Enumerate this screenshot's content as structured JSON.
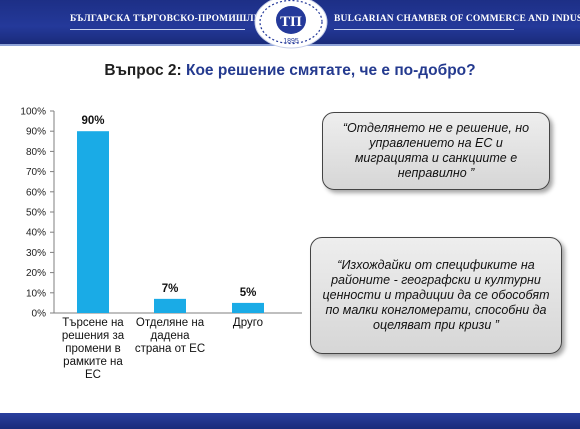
{
  "header": {
    "left_text": "БЪЛГАРСКА ТЪРГОВСКО-ПРОМИШЛЕНА ПАЛАТА",
    "right_text": "BULGARIAN CHAMBER OF COMMERCE AND INDUSTRY",
    "logo_year": "1895",
    "logo_glyph": "ТП"
  },
  "question": {
    "prefix": "Въпрос 2: ",
    "text": "Кое решение смятате, че е по-добро?"
  },
  "chart_data": {
    "type": "bar",
    "categories": [
      "Търсене на решения за промени в рамките на ЕС",
      "Отделяне на дадена страна от ЕС",
      "Друго"
    ],
    "category_lines": [
      [
        "Търсене на",
        "решения за",
        "промени в",
        "рамките на",
        "ЕС"
      ],
      [
        "Отделяне на",
        "дадена",
        "страна от ЕС"
      ],
      [
        "Друго"
      ]
    ],
    "values": [
      90,
      7,
      5
    ],
    "data_labels": [
      "90%",
      "7%",
      "5%"
    ],
    "yticks": [
      "0%",
      "10%",
      "20%",
      "30%",
      "40%",
      "50%",
      "60%",
      "70%",
      "80%",
      "90%",
      "100%"
    ],
    "ylim": [
      0,
      100
    ],
    "bar_color": "#1aabe6",
    "grid": false,
    "legend": "none"
  },
  "callouts": [
    {
      "text": "“Отделянето не е решение, но управлението на ЕС и миграцията и санкциите е неправилно ”"
    },
    {
      "text": "“Изхождайки от спецификите на районите - географски и културни ценности и традиции да се обособят по малки конгломерати, способни да оцеляват при кризи ”"
    }
  ],
  "colors": {
    "banner": "#24399a",
    "question_accent": "#243a8f"
  }
}
